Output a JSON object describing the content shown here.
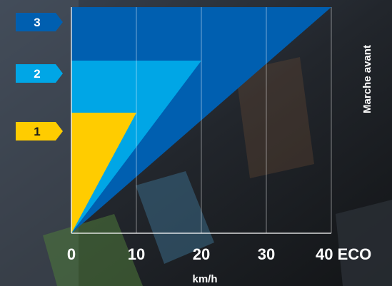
{
  "chart_data": {
    "type": "area",
    "title": "",
    "xlabel": "km/h",
    "side_label": "Marche avant",
    "x_ticks": [
      "0",
      "10",
      "20",
      "30",
      "40 ECO"
    ],
    "xlim": [
      0,
      40
    ],
    "grid": true,
    "series": [
      {
        "name": "1",
        "x_max": 10,
        "y_max": 1,
        "color": "#ffcc00",
        "label_color": "#1a1a1a"
      },
      {
        "name": "2",
        "x_max": 20,
        "y_max": 2,
        "color": "#00a6e6",
        "label_color": "#ffffff"
      },
      {
        "name": "3",
        "x_max": 40,
        "y_max": 3,
        "color": "#005fb0",
        "label_color": "#ffffff"
      }
    ]
  }
}
